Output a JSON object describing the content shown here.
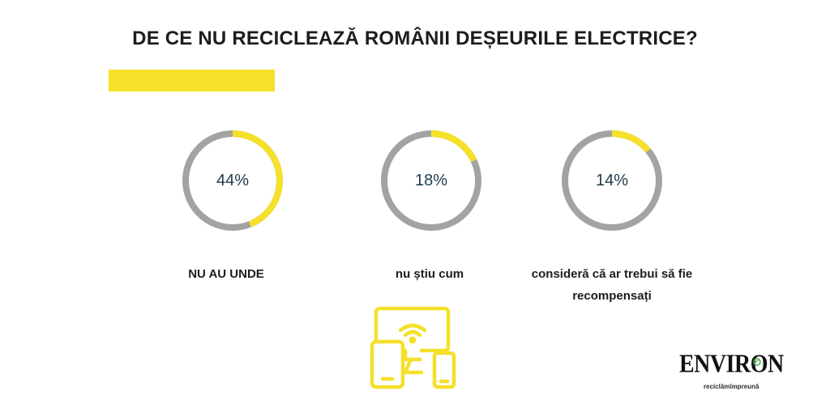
{
  "title": "DE CE NU RECICLEAZĂ ROMÂNII DEȘEURILE ELECTRICE?",
  "colors": {
    "accent": "#f5e02a",
    "track": "#a3a3a3",
    "text": "#1d1d1f",
    "percent_text": "#1d3b4a"
  },
  "chart_data": {
    "type": "pie",
    "title": "DE CE NU RECICLEAZĂ ROMÂNII DEȘEURILE ELECTRICE?",
    "items": [
      {
        "label": "NU AU UNDE",
        "value": 44,
        "display": "44%"
      },
      {
        "label": "nu știu cum",
        "value": 18,
        "display": "18%"
      },
      {
        "label": "consideră că ar trebui să fie recompensați",
        "value": 14,
        "display": "14%"
      }
    ]
  },
  "icons": {
    "devices": "devices-wifi-icon",
    "logo_leaf": "leaf-icon"
  },
  "logo": {
    "name": "ENVIRON",
    "tagline": "reciclămîmpreună"
  }
}
